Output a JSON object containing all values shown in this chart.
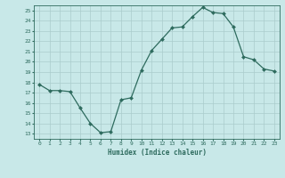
{
  "x": [
    0,
    1,
    2,
    3,
    4,
    5,
    6,
    7,
    8,
    9,
    10,
    11,
    12,
    13,
    14,
    15,
    16,
    17,
    18,
    19,
    20,
    21,
    22,
    23
  ],
  "y": [
    17.8,
    17.2,
    17.2,
    17.1,
    15.5,
    14.0,
    13.1,
    13.2,
    16.3,
    16.5,
    19.2,
    21.1,
    22.2,
    23.3,
    23.4,
    24.4,
    25.3,
    24.8,
    24.7,
    23.4,
    20.5,
    20.2,
    19.3,
    19.1
  ],
  "xlabel": "Humidex (Indice chaleur)",
  "bg_color": "#c8e8e8",
  "line_color": "#2e6b5e",
  "marker_color": "#2e6b5e",
  "grid_color": "#aacccc",
  "tick_label_color": "#2e6b5e",
  "ylim": [
    12.5,
    25.5
  ],
  "xlim": [
    -0.5,
    23.5
  ],
  "yticks": [
    13,
    14,
    15,
    16,
    17,
    18,
    19,
    20,
    21,
    22,
    23,
    24,
    25
  ],
  "xticks": [
    0,
    1,
    2,
    3,
    4,
    5,
    6,
    7,
    8,
    9,
    10,
    11,
    12,
    13,
    14,
    15,
    16,
    17,
    18,
    19,
    20,
    21,
    22,
    23
  ],
  "figsize": [
    3.2,
    2.0
  ],
  "dpi": 100
}
